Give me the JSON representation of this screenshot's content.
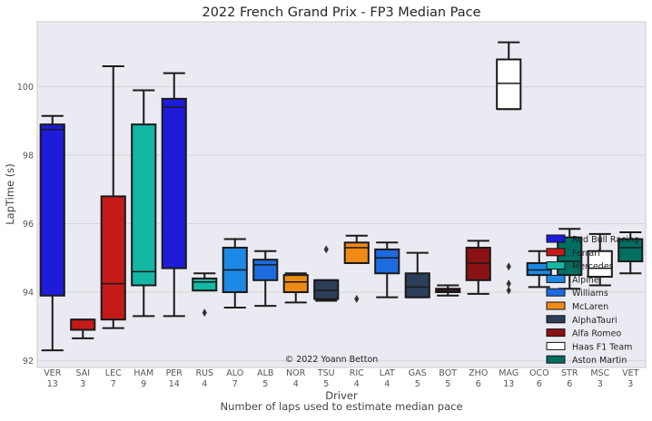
{
  "chart_data": {
    "type": "box",
    "title": "2022 French Grand Prix - FP3 Median Pace",
    "xlabel": "Driver",
    "xlabel_sub": "Number of laps used to estimate median pace",
    "ylabel": "LapTime (s)",
    "ylim": [
      91.8,
      101.9
    ],
    "yticks": [
      92,
      94,
      96,
      98,
      100
    ],
    "grid": true,
    "legend_position": "right",
    "watermark": "© 2022 Yoann Betton",
    "categories": [
      {
        "driver": "VER",
        "laps": "13",
        "team": "Red Bull Racing",
        "color": "#1e1bda",
        "q1": 93.9,
        "median": 98.75,
        "q3": 98.9,
        "whisker_low": 92.3,
        "whisker_high": 99.15,
        "fliers": []
      },
      {
        "driver": "SAI",
        "laps": "3",
        "team": "Ferrari",
        "color": "#c41a1a",
        "q1": 92.9,
        "median": 93.2,
        "q3": 93.2,
        "whisker_low": 92.65,
        "whisker_high": 93.2,
        "fliers": []
      },
      {
        "driver": "LEC",
        "laps": "7",
        "team": "Ferrari",
        "color": "#c41a1a",
        "q1": 93.2,
        "median": 94.25,
        "q3": 96.8,
        "whisker_low": 92.95,
        "whisker_high": 100.6,
        "fliers": []
      },
      {
        "driver": "HAM",
        "laps": "9",
        "team": "Mercedes",
        "color": "#12b8a4",
        "q1": 94.2,
        "median": 94.6,
        "q3": 98.9,
        "whisker_low": 93.3,
        "whisker_high": 99.9,
        "fliers": []
      },
      {
        "driver": "PER",
        "laps": "14",
        "team": "Red Bull Racing",
        "color": "#1e1bda",
        "q1": 94.7,
        "median": 99.4,
        "q3": 99.65,
        "whisker_low": 93.3,
        "whisker_high": 100.4,
        "fliers": []
      },
      {
        "driver": "RUS",
        "laps": "4",
        "team": "Mercedes",
        "color": "#12b8a4",
        "q1": 94.05,
        "median": 94.3,
        "q3": 94.4,
        "whisker_low": 94.05,
        "whisker_high": 94.55,
        "fliers": [
          93.4
        ]
      },
      {
        "driver": "ALO",
        "laps": "7",
        "team": "Alpine",
        "color": "#1e88e5",
        "q1": 94.0,
        "median": 94.65,
        "q3": 95.3,
        "whisker_low": 93.55,
        "whisker_high": 95.55,
        "fliers": []
      },
      {
        "driver": "ALB",
        "laps": "5",
        "team": "Williams",
        "color": "#1e6be0",
        "q1": 94.35,
        "median": 94.8,
        "q3": 94.95,
        "whisker_low": 93.6,
        "whisker_high": 95.2,
        "fliers": []
      },
      {
        "driver": "NOR",
        "laps": "4",
        "team": "McLaren",
        "color": "#ef8b15",
        "q1": 94.0,
        "median": 94.3,
        "q3": 94.5,
        "whisker_low": 93.7,
        "whisker_high": 94.55,
        "fliers": []
      },
      {
        "driver": "TSU",
        "laps": "5",
        "team": "AlphaTauri",
        "color": "#2c3e58",
        "q1": 93.8,
        "median": 94.05,
        "q3": 94.35,
        "whisker_low": 93.75,
        "whisker_high": 94.35,
        "fliers": [
          95.25
        ]
      },
      {
        "driver": "RIC",
        "laps": "4",
        "team": "McLaren",
        "color": "#ef8b15",
        "q1": 94.85,
        "median": 95.3,
        "q3": 95.45,
        "whisker_low": 94.85,
        "whisker_high": 95.65,
        "fliers": [
          93.8
        ]
      },
      {
        "driver": "LAT",
        "laps": "4",
        "team": "Williams",
        "color": "#1e6be0",
        "q1": 94.55,
        "median": 95.0,
        "q3": 95.25,
        "whisker_low": 93.85,
        "whisker_high": 95.45,
        "fliers": []
      },
      {
        "driver": "GAS",
        "laps": "5",
        "team": "AlphaTauri",
        "color": "#2c3e58",
        "q1": 93.85,
        "median": 94.15,
        "q3": 94.55,
        "whisker_low": 93.85,
        "whisker_high": 95.15,
        "fliers": []
      },
      {
        "driver": "BOT",
        "laps": "5",
        "team": "Alfa Romeo",
        "color": "#8a1114",
        "q1": 94.0,
        "median": 94.05,
        "q3": 94.1,
        "whisker_low": 93.9,
        "whisker_high": 94.2,
        "fliers": []
      },
      {
        "driver": "ZHO",
        "laps": "6",
        "team": "Alfa Romeo",
        "color": "#8a1114",
        "q1": 94.35,
        "median": 94.85,
        "q3": 95.3,
        "whisker_low": 93.95,
        "whisker_high": 95.5,
        "fliers": []
      },
      {
        "driver": "MAG",
        "laps": "13",
        "team": "Haas F1 Team",
        "color": "#ffffff",
        "q1": 99.35,
        "median": 100.1,
        "q3": 100.8,
        "whisker_low": 99.35,
        "whisker_high": 101.3,
        "fliers": [
          94.75,
          94.25,
          94.05
        ]
      },
      {
        "driver": "OCO",
        "laps": "6",
        "team": "Alpine",
        "color": "#1e88e5",
        "q1": 94.5,
        "median": 94.65,
        "q3": 94.85,
        "whisker_low": 94.15,
        "whisker_high": 95.2,
        "fliers": []
      },
      {
        "driver": "STR",
        "laps": "6",
        "team": "Aston Martin",
        "color": "#006f62",
        "q1": 94.5,
        "median": 94.9,
        "q3": 95.6,
        "whisker_low": 94.1,
        "whisker_high": 95.85,
        "fliers": []
      },
      {
        "driver": "MSC",
        "laps": "3",
        "team": "Haas F1 Team",
        "color": "#ffffff",
        "q1": 94.45,
        "median": 94.7,
        "q3": 95.2,
        "whisker_low": 94.2,
        "whisker_high": 95.7,
        "fliers": []
      },
      {
        "driver": "VET",
        "laps": "3",
        "team": "Aston Martin",
        "color": "#006f62",
        "q1": 94.9,
        "median": 95.3,
        "q3": 95.55,
        "whisker_low": 94.55,
        "whisker_high": 95.75,
        "fliers": []
      }
    ],
    "legend": [
      {
        "name": "Red Bull Racing",
        "color": "#1e1bda"
      },
      {
        "name": "Ferrari",
        "color": "#c41a1a"
      },
      {
        "name": "Mercedes",
        "color": "#12b8a4"
      },
      {
        "name": "Alpine",
        "color": "#1e88e5"
      },
      {
        "name": "Williams",
        "color": "#1e6be0"
      },
      {
        "name": "McLaren",
        "color": "#ef8b15"
      },
      {
        "name": "AlphaTauri",
        "color": "#2c3e58"
      },
      {
        "name": "Alfa Romeo",
        "color": "#8a1114"
      },
      {
        "name": "Haas F1 Team",
        "color": "#ffffff"
      },
      {
        "name": "Aston Martin",
        "color": "#006f62"
      }
    ],
    "colors": {
      "plot_background": "#eaeaf2",
      "grid": "#d6d6d6",
      "axis_frame": "#cccccc",
      "box_edge": "#1a1a1a",
      "tick_text": "#555555",
      "title_text": "#262626"
    }
  }
}
